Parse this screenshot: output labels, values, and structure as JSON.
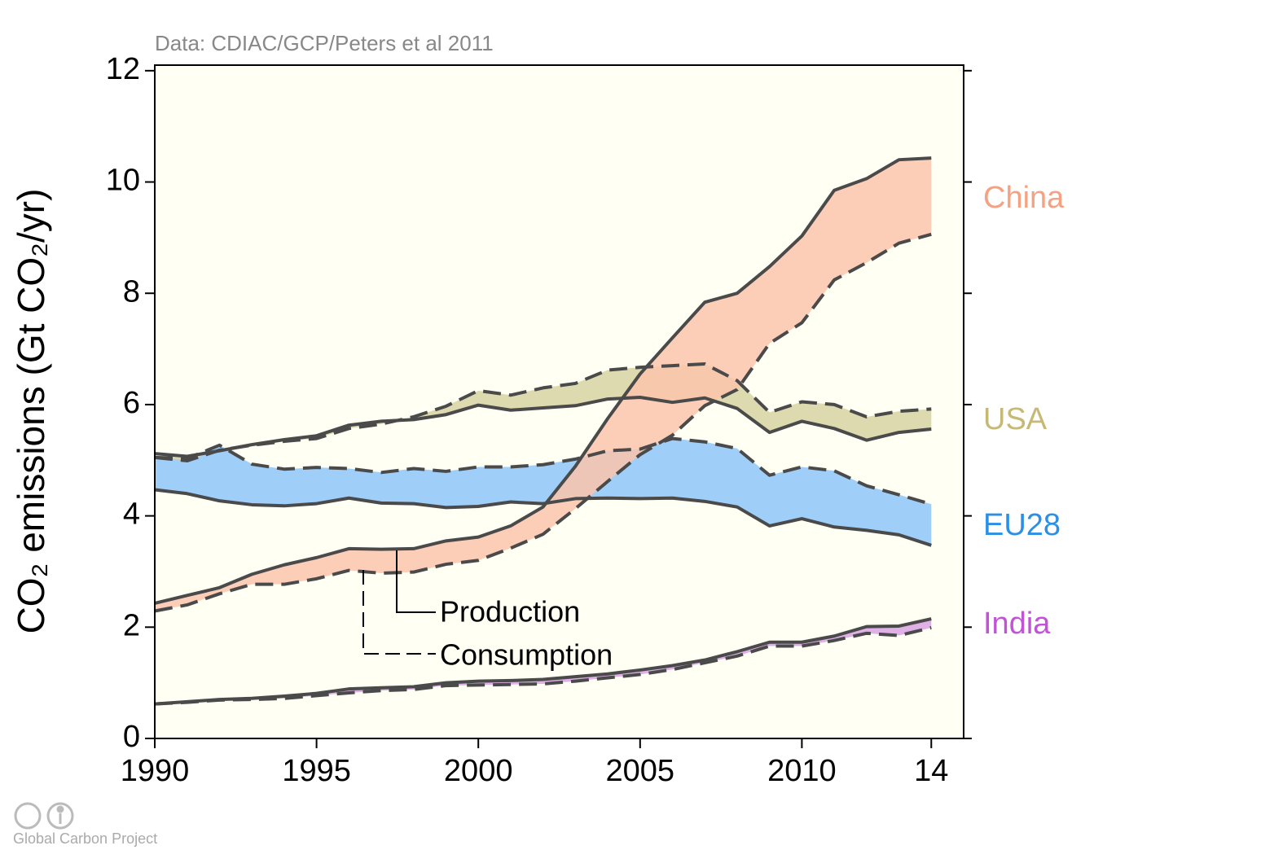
{
  "chart_data": {
    "type": "band",
    "title": "Data: CDIAC/GCP/Peters et al 2011",
    "ylabel": "CO₂ emissions (Gt CO₂/yr)",
    "footer": "Global Carbon Project",
    "legend": {
      "production": "Production",
      "consumption": "Consumption"
    },
    "x": [
      1990,
      1991,
      1992,
      1993,
      1994,
      1995,
      1996,
      1997,
      1998,
      1999,
      2000,
      2001,
      2002,
      2003,
      2004,
      2005,
      2006,
      2007,
      2008,
      2009,
      2010,
      2011,
      2012,
      2013,
      2014
    ],
    "xlim": [
      1990,
      2015
    ],
    "xticks": [
      1990,
      1995,
      2000,
      2005,
      2010,
      {
        "value": 2014,
        "label": "14"
      }
    ],
    "ylim": [
      0,
      12.1
    ],
    "yticks": [
      0,
      2,
      4,
      6,
      8,
      10,
      12
    ],
    "series": [
      {
        "name": "India",
        "color": "#d9a3e3",
        "label_color": "#c154d6",
        "production": [
          0.62,
          0.66,
          0.7,
          0.72,
          0.76,
          0.81,
          0.89,
          0.91,
          0.93,
          1.0,
          1.03,
          1.04,
          1.06,
          1.11,
          1.16,
          1.23,
          1.31,
          1.41,
          1.56,
          1.73,
          1.73,
          1.84,
          2.01,
          2.02,
          2.15
        ],
        "consumption": [
          0.62,
          0.65,
          0.69,
          0.7,
          0.72,
          0.77,
          0.82,
          0.86,
          0.88,
          0.95,
          0.96,
          0.97,
          0.98,
          1.03,
          1.09,
          1.15,
          1.24,
          1.36,
          1.48,
          1.66,
          1.66,
          1.76,
          1.89,
          1.85,
          1.99
        ]
      },
      {
        "name": "EU28",
        "color": "#8ec6f8",
        "label_color": "#2b8fe6",
        "production": [
          4.47,
          4.4,
          4.27,
          4.2,
          4.18,
          4.22,
          4.32,
          4.23,
          4.22,
          4.15,
          4.17,
          4.25,
          4.22,
          4.31,
          4.32,
          4.31,
          4.32,
          4.26,
          4.16,
          3.82,
          3.95,
          3.8,
          3.74,
          3.66,
          3.47
        ],
        "consumption": [
          5.05,
          5.03,
          5.27,
          4.93,
          4.84,
          4.87,
          4.85,
          4.78,
          4.85,
          4.8,
          4.88,
          4.88,
          4.92,
          5.02,
          5.17,
          5.2,
          5.39,
          5.33,
          5.21,
          4.73,
          4.88,
          4.81,
          4.54,
          4.38,
          4.21
        ]
      },
      {
        "name": "USA",
        "color": "#d8d3a3",
        "label_color": "#c6b975",
        "production": [
          5.12,
          5.07,
          5.17,
          5.28,
          5.37,
          5.44,
          5.63,
          5.7,
          5.73,
          5.82,
          5.99,
          5.9,
          5.94,
          5.98,
          6.1,
          6.13,
          6.04,
          6.12,
          5.93,
          5.5,
          5.7,
          5.57,
          5.36,
          5.5,
          5.56
        ],
        "consumption": [
          5.05,
          4.99,
          5.18,
          5.27,
          5.34,
          5.39,
          5.57,
          5.65,
          5.78,
          5.97,
          6.25,
          6.17,
          6.3,
          6.38,
          6.62,
          6.67,
          6.7,
          6.73,
          6.43,
          5.86,
          6.05,
          6.0,
          5.78,
          5.88,
          5.92
        ]
      },
      {
        "name": "China",
        "color": "#fcc4ab",
        "label_color": "#f5a282",
        "production": [
          2.43,
          2.57,
          2.71,
          2.95,
          3.12,
          3.25,
          3.41,
          3.4,
          3.41,
          3.55,
          3.62,
          3.82,
          4.16,
          4.89,
          5.75,
          6.55,
          7.2,
          7.84,
          8.0,
          8.48,
          9.03,
          9.85,
          10.06,
          10.4,
          10.43
        ],
        "consumption": [
          2.29,
          2.4,
          2.6,
          2.77,
          2.77,
          2.87,
          3.02,
          2.97,
          2.99,
          3.13,
          3.2,
          3.42,
          3.67,
          4.13,
          4.62,
          5.1,
          5.45,
          5.98,
          6.27,
          7.1,
          7.47,
          8.24,
          8.55,
          8.9,
          9.06
        ]
      }
    ]
  }
}
